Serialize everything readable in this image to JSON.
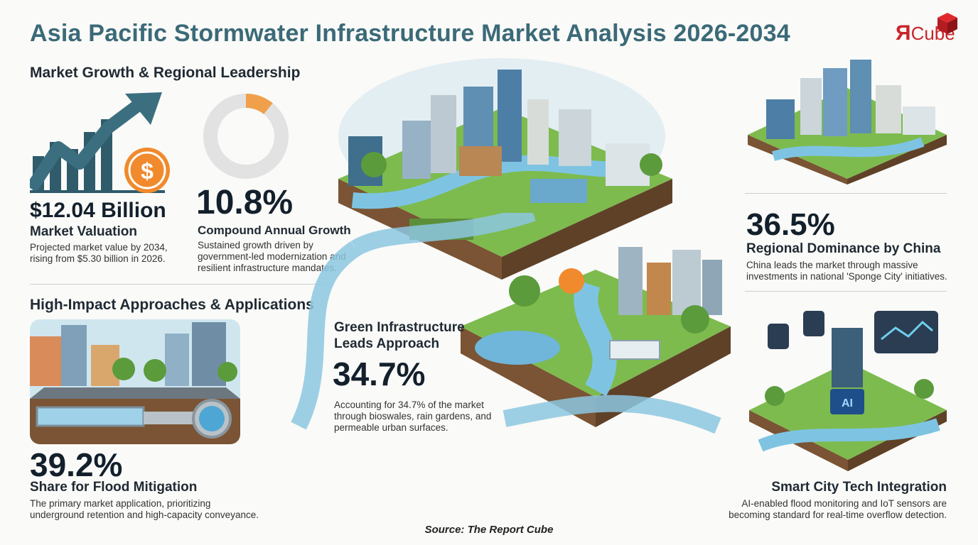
{
  "header": {
    "title": "Asia Pacific Stormwater Infrastructure Market Analysis 2026-2034",
    "logo_text": "Cube",
    "logo_mark": "Я",
    "brand_color": "#c8252b"
  },
  "section_growth": {
    "heading": "Market Growth & Regional Leadership",
    "valuation": {
      "value": "$12.04 Billion",
      "label": "Market Valuation",
      "desc_line1": "Projected market value by 2034,",
      "desc_line2": "rising from $5.30 billion in 2026."
    },
    "cagr": {
      "value": "10.8%",
      "label": "Compound Annual Growth",
      "desc_line1": "Sustained growth driven by",
      "desc_line2": "government-led modernization and",
      "desc_line3": "resilient infrastructure mandates.",
      "donut_fraction": 0.108,
      "donut_color": "#f0a04b"
    }
  },
  "section_approaches": {
    "heading": "High-Impact Approaches & Applications",
    "flood": {
      "value": "39.2%",
      "label": "Share for Flood Mitigation",
      "desc_line1": "The primary market application, prioritizing",
      "desc_line2": "underground retention and high-capacity conveyance."
    }
  },
  "green": {
    "label_line1": "Green Infrastructure",
    "label_line2": "Leads Approach",
    "value": "34.7%",
    "desc_line1": "Accounting for 34.7% of the market",
    "desc_line2": "through bioswales, rain gardens, and",
    "desc_line3": "permeable urban surfaces."
  },
  "china": {
    "value": "36.5%",
    "label": "Regional Dominance by China",
    "desc_line1": "China leads the market through massive",
    "desc_line2": "investments in national 'Sponge City' initiatives."
  },
  "smart": {
    "label": "Smart City Tech Integration",
    "desc_line1": "AI-enabled flood monitoring and IoT sensors are",
    "desc_line2": "becoming standard for real-time overflow detection.",
    "chip_text": "AI"
  },
  "footer": {
    "source": "Source: The Report Cube"
  },
  "icons": [
    "growth-arrow-icon",
    "dollar-coin-icon",
    "donut-chart-icon",
    "city-island-illustration",
    "sponge-city-illustration",
    "flood-pipe-illustration",
    "green-park-illustration",
    "smart-city-illustration"
  ],
  "colors": {
    "title": "#3b6a78",
    "water": "#6bb4d6",
    "grass": "#6aa64a",
    "accent": "#f0a04b"
  }
}
